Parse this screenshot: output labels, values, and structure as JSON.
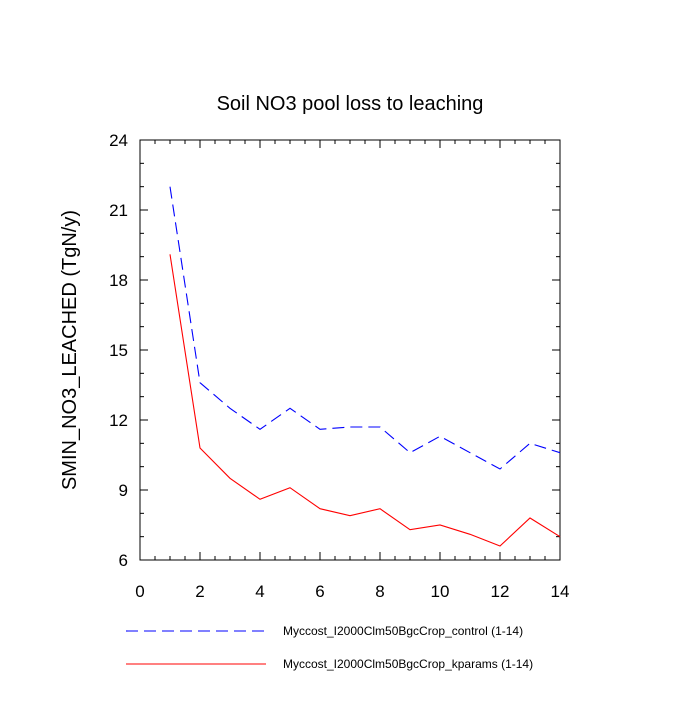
{
  "chart_data": {
    "type": "line",
    "title": "Soil NO3 pool loss to leaching",
    "xlabel": "",
    "ylabel": "SMIN_NO3_LEACHED  (TgN/y)",
    "xlim": [
      0,
      14
    ],
    "ylim": [
      6,
      24
    ],
    "x_ticks": [
      "0",
      "2",
      "4",
      "6",
      "8",
      "10",
      "12",
      "14"
    ],
    "y_ticks": [
      "6",
      "9",
      "12",
      "15",
      "18",
      "21",
      "24"
    ],
    "grid": false,
    "legend_position": "bottom",
    "x": [
      1,
      2,
      3,
      4,
      5,
      6,
      7,
      8,
      9,
      10,
      11,
      12,
      13,
      14
    ],
    "series": [
      {
        "name": "Myccost_I2000Clm50BgcCrop_control (1-14)",
        "color": "#0000ff",
        "dash": "dashed",
        "values": [
          22.0,
          13.6,
          12.5,
          11.6,
          12.5,
          11.6,
          11.7,
          11.7,
          10.6,
          11.3,
          10.6,
          9.9,
          11.0,
          10.6
        ]
      },
      {
        "name": "Myccost_I2000Clm50BgcCrop_kparams (1-14)",
        "color": "#ff0000",
        "dash": "solid",
        "values": [
          19.1,
          10.8,
          9.5,
          8.6,
          9.1,
          8.2,
          7.9,
          8.2,
          7.3,
          7.5,
          7.1,
          6.6,
          7.8,
          7.0
        ]
      }
    ]
  }
}
